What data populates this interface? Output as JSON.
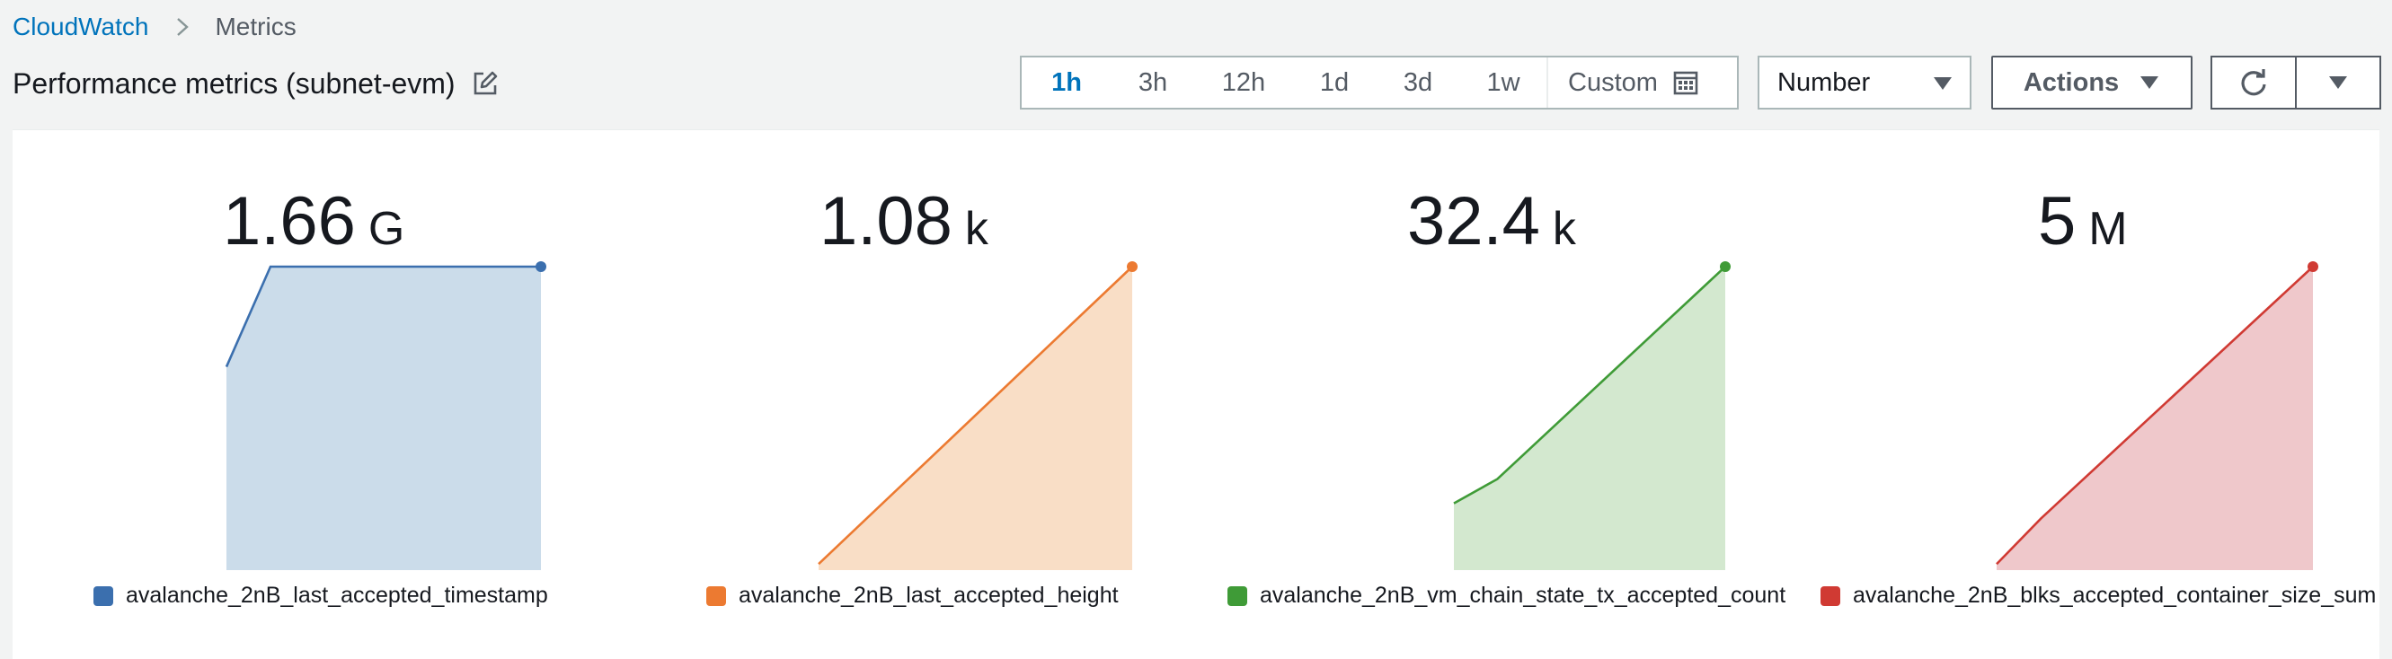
{
  "breadcrumb": {
    "root": "CloudWatch",
    "current": "Metrics"
  },
  "header": {
    "title": "Performance metrics (subnet-evm)"
  },
  "timerange": {
    "options": [
      "1h",
      "3h",
      "12h",
      "1d",
      "3d",
      "1w"
    ],
    "active": "1h",
    "custom_label": "Custom"
  },
  "view_select": {
    "value": "Number"
  },
  "actions": {
    "label": "Actions"
  },
  "icons": {
    "breadcrumb_separator": "chevron-right-icon",
    "edit": "edit-icon",
    "calendar": "calendar-icon",
    "dropdown": "caret-down-icon",
    "refresh": "refresh-icon"
  },
  "colors": {
    "link": "#0073bb",
    "blue": "#3b6fae",
    "orange": "#ec7a31",
    "green": "#3f9b37",
    "red": "#d03a33"
  },
  "widgets": [
    {
      "value": "1.66",
      "unit": "G",
      "metric": "avalanche_2nB_last_accepted_timestamp",
      "color": "#3b6fae"
    },
    {
      "value": "1.08",
      "unit": "k",
      "metric": "avalanche_2nB_last_accepted_height",
      "color": "#ec7a31"
    },
    {
      "value": "32.4",
      "unit": "k",
      "metric": "avalanche_2nB_vm_chain_state_tx_accepted_count",
      "color": "#3f9b37"
    },
    {
      "value": "5",
      "unit": "M",
      "metric": "avalanche_2nB_blks_accepted_container_size_sum",
      "color": "#d03a33"
    }
  ],
  "chart_data": [
    {
      "type": "area",
      "series": [
        {
          "name": "avalanche_2nB_last_accepted_timestamp",
          "values": [
            0.67,
            1.0,
            1.0
          ]
        }
      ],
      "x": [
        0,
        0.14,
        1.0
      ]
    },
    {
      "type": "area",
      "series": [
        {
          "name": "avalanche_2nB_last_accepted_height",
          "values": [
            0.02,
            1.0
          ]
        }
      ],
      "x": [
        0,
        1.0
      ]
    },
    {
      "type": "area",
      "series": [
        {
          "name": "avalanche_2nB_vm_chain_state_tx_accepted_count",
          "values": [
            0.22,
            0.3,
            1.0
          ]
        }
      ],
      "x": [
        0,
        0.16,
        1.0
      ]
    },
    {
      "type": "area",
      "series": [
        {
          "name": "avalanche_2nB_blks_accepted_container_size_sum",
          "values": [
            0.02,
            0.17,
            1.0
          ]
        }
      ],
      "x": [
        0,
        0.14,
        1.0
      ]
    }
  ]
}
